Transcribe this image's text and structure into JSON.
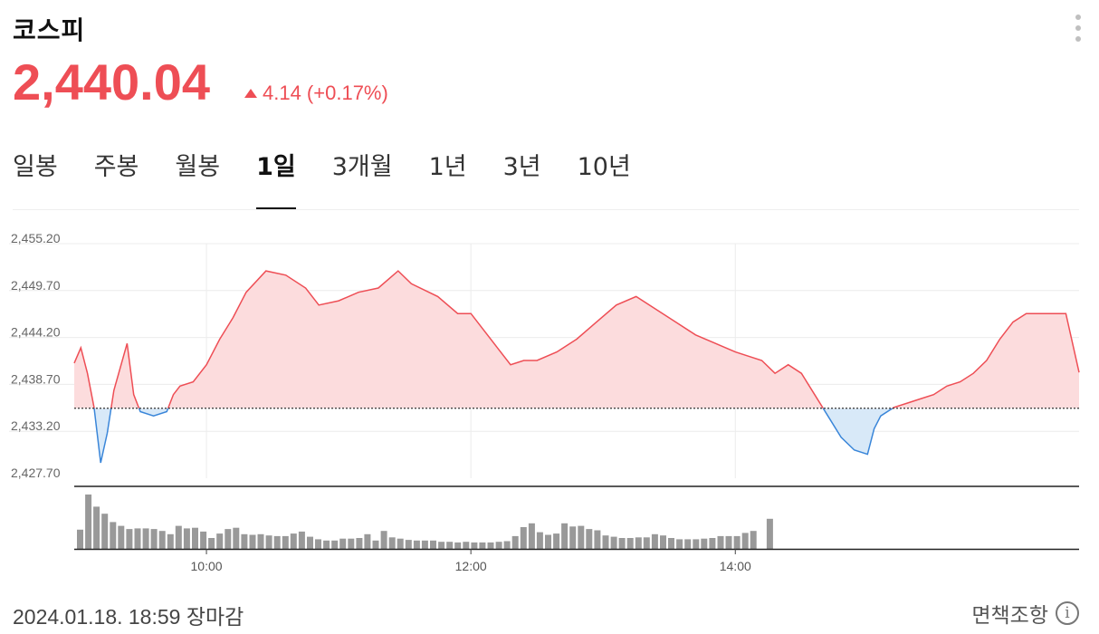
{
  "header": {
    "title": "코스피",
    "price": "2,440.04",
    "change": "4.14 (+0.17%)",
    "more_icon": "vertical-dots-icon"
  },
  "tabs": [
    {
      "label": "일봉",
      "active": false
    },
    {
      "label": "주봉",
      "active": false
    },
    {
      "label": "월봉",
      "active": false
    },
    {
      "label": "1일",
      "active": true
    },
    {
      "label": "3개월",
      "active": false
    },
    {
      "label": "1년",
      "active": false
    },
    {
      "label": "3년",
      "active": false
    },
    {
      "label": "10년",
      "active": false
    }
  ],
  "footer": {
    "timestamp": "2024.01.18. 18:59 장마감",
    "disclaimer": "면책조항",
    "info_icon": "info-icon"
  },
  "colors": {
    "up": "#ee4e55",
    "down": "#3a86d9",
    "up_fill": "#fcdcdd",
    "down_fill": "#d8e9f8",
    "volume": "#999999"
  },
  "chart_data": {
    "type": "area",
    "y_ticks": [
      "2,455.20",
      "2,449.70",
      "2,444.20",
      "2,438.70",
      "2,433.20",
      "2,427.70"
    ],
    "ylim": [
      2427.7,
      2455.2
    ],
    "x_ticks": [
      {
        "label": "10:00",
        "hour": 10
      },
      {
        "label": "12:00",
        "hour": 12
      },
      {
        "label": "14:00",
        "hour": 14
      }
    ],
    "session": {
      "start": "09:00",
      "end": "15:30"
    },
    "reference_value": 2435.9,
    "series": [
      {
        "name": "",
        "points": [
          [
            9.0,
            2441.2
          ],
          [
            9.05,
            2443.0
          ],
          [
            9.1,
            2440.0
          ],
          [
            9.15,
            2436.0
          ],
          [
            9.2,
            2429.5
          ],
          [
            9.25,
            2433.0
          ],
          [
            9.3,
            2438.0
          ],
          [
            9.4,
            2443.5
          ],
          [
            9.45,
            2437.5
          ],
          [
            9.5,
            2435.5
          ],
          [
            9.6,
            2435.0
          ],
          [
            9.7,
            2435.5
          ],
          [
            9.75,
            2437.5
          ],
          [
            9.8,
            2438.5
          ],
          [
            9.9,
            2439.0
          ],
          [
            10.0,
            2441.0
          ],
          [
            10.1,
            2444.0
          ],
          [
            10.2,
            2446.5
          ],
          [
            10.3,
            2449.5
          ],
          [
            10.45,
            2452.0
          ],
          [
            10.6,
            2451.5
          ],
          [
            10.75,
            2450.0
          ],
          [
            10.85,
            2448.0
          ],
          [
            11.0,
            2448.5
          ],
          [
            11.15,
            2449.5
          ],
          [
            11.3,
            2450.0
          ],
          [
            11.45,
            2452.0
          ],
          [
            11.55,
            2450.5
          ],
          [
            11.75,
            2449.0
          ],
          [
            11.9,
            2447.0
          ],
          [
            12.0,
            2447.0
          ],
          [
            12.1,
            2445.0
          ],
          [
            12.2,
            2443.0
          ],
          [
            12.3,
            2441.0
          ],
          [
            12.4,
            2441.5
          ],
          [
            12.5,
            2441.5
          ],
          [
            12.65,
            2442.5
          ],
          [
            12.8,
            2444.0
          ],
          [
            12.95,
            2446.0
          ],
          [
            13.1,
            2448.0
          ],
          [
            13.25,
            2449.0
          ],
          [
            13.4,
            2447.5
          ],
          [
            13.55,
            2446.0
          ],
          [
            13.7,
            2444.5
          ],
          [
            13.85,
            2443.5
          ],
          [
            14.0,
            2442.5
          ],
          [
            14.1,
            2442.0
          ],
          [
            14.2,
            2441.5
          ],
          [
            14.3,
            2440.0
          ],
          [
            14.4,
            2441.0
          ],
          [
            14.5,
            2440.0
          ],
          [
            14.6,
            2437.5
          ],
          [
            14.7,
            2435.0
          ],
          [
            14.8,
            2432.5
          ],
          [
            14.9,
            2431.0
          ],
          [
            15.0,
            2430.5
          ],
          [
            15.05,
            2433.5
          ],
          [
            15.1,
            2435.0
          ],
          [
            15.2,
            2436.0
          ],
          [
            15.3,
            2436.5
          ],
          [
            15.4,
            2437.0
          ],
          [
            15.5,
            2437.5
          ],
          [
            15.6,
            2438.5
          ],
          [
            15.7,
            2439.0
          ],
          [
            15.8,
            2440.0
          ],
          [
            15.9,
            2441.5
          ],
          [
            16.0,
            2444.0
          ],
          [
            16.1,
            2446.0
          ],
          [
            16.2,
            2447.0
          ],
          [
            16.3,
            2447.0
          ],
          [
            16.5,
            2447.0
          ],
          [
            16.6,
            2440.1
          ]
        ]
      }
    ],
    "volume": {
      "bars": [
        30,
        85,
        66,
        55,
        42,
        36,
        31,
        32,
        32,
        31,
        28,
        23,
        36,
        32,
        33,
        27,
        17,
        24,
        31,
        33,
        23,
        22,
        23,
        21,
        20,
        20,
        24,
        27,
        19,
        15,
        13,
        13,
        16,
        16,
        17,
        23,
        13,
        28,
        18,
        16,
        14,
        13,
        13,
        13,
        11,
        11,
        10,
        11,
        10,
        10,
        10,
        11,
        12,
        20,
        34,
        40,
        26,
        22,
        24,
        40,
        35,
        36,
        31,
        29,
        21,
        19,
        17,
        17,
        18,
        18,
        23,
        21,
        17,
        15,
        15,
        15,
        16,
        17,
        20,
        20,
        20,
        25,
        28,
        0,
        47
      ]
    }
  }
}
